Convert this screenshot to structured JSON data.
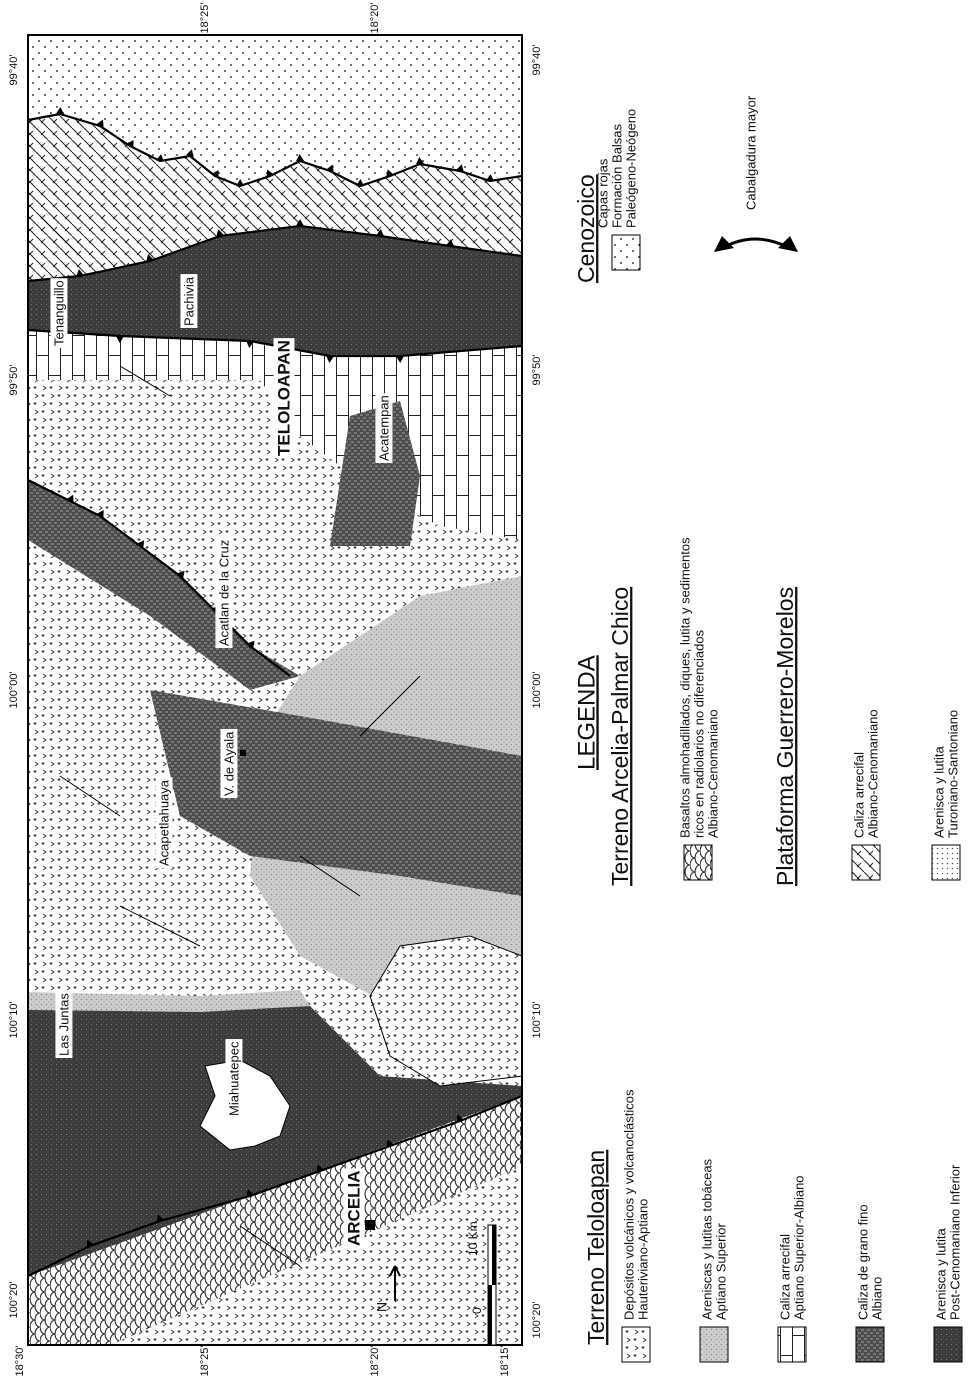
{
  "map": {
    "coordinates": {
      "longitudes_north_edge": [
        "99°40'",
        "99°50'",
        "100°00'",
        "100°10'",
        "100°20'"
      ],
      "longitudes_south_edge": [
        "99°40'",
        "99°50'",
        "100°00'",
        "100°10'",
        "100°20'"
      ],
      "latitudes_west_edge": [
        "18°30'",
        "18°25'",
        "18°20'",
        "18°15'"
      ],
      "latitudes_east_edge": [
        "18°25'",
        "18°20'"
      ]
    },
    "places": [
      "Tenanguillo",
      "Pachivia",
      "TELOLOAPAN",
      "Acatempan",
      "Acatlan de la Cruz",
      "V. de Ayala",
      "Acapetlahuaya",
      "Las Juntas",
      "Miahuatepec",
      "ARCELIA"
    ],
    "scale": {
      "zero": "0",
      "label": "10 Km"
    },
    "north": "N"
  },
  "legend": {
    "title": "LEGENDA",
    "groups": [
      {
        "title": "Terreno Teloloapan",
        "items": [
          [
            "Depósitos volcánicos y volcanoclásticos",
            "Hauteriviano-Aptiano"
          ],
          [
            "Areniscas y lutitas tobáceas",
            "Aptiano Superior"
          ],
          [
            "Caliza arrecifal",
            "Aptiano Superior-Albiano"
          ],
          [
            "Caliza de grano fino",
            "Albiano"
          ],
          [
            "Arenisca y lutita",
            "Post-Cenomaniano Inferior"
          ]
        ]
      },
      {
        "title": "Terreno Arcelia-Palmar Chico",
        "items": [
          [
            "Basaltos almohadillados, diques, lutita y sedimentos",
            "ricos en radiolarios no diferenciados",
            "Albiano-Cenomaniano"
          ]
        ]
      },
      {
        "title": "Plataforma Guerrero-Morelos",
        "items": [
          [
            "Caliza arrecifal",
            "Albiano-Cenomaniano"
          ],
          [
            "Arenisca y lutita",
            "Turoniano-Santoniano"
          ]
        ]
      },
      {
        "title": "Cenozoico",
        "items": [
          [
            "Capas rojas",
            "Formación Balsas",
            "Paleógeno-Neógeno"
          ]
        ]
      }
    ],
    "thrust": "Cabalgadura mayor"
  }
}
